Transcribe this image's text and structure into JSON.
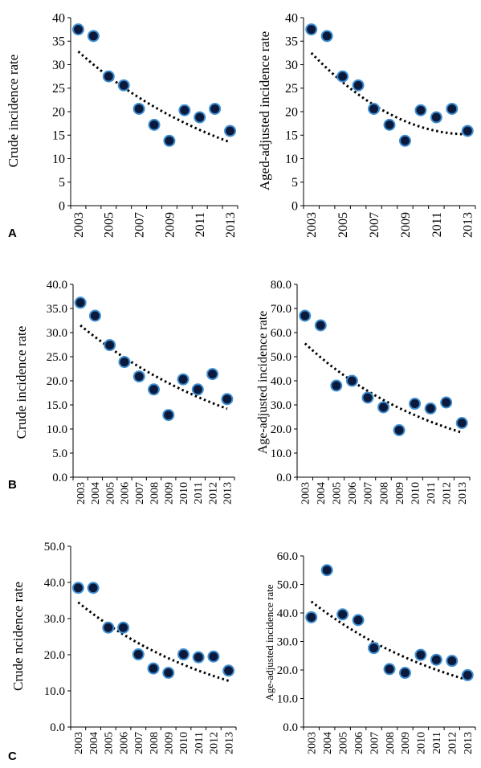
{
  "panel_letters": [
    "A",
    "B",
    "C"
  ],
  "colors": {
    "marker_fill": "#0b1a3c",
    "marker_stroke": "#3f8fd2",
    "trend": "#000000",
    "axis": "#000000"
  },
  "chart_data": [
    {
      "type": "scatter",
      "panel": "A",
      "ylabel": "Crude incidence rate",
      "xlabel": "",
      "x": [
        2003,
        2004,
        2005,
        2006,
        2007,
        2008,
        2009,
        2010,
        2011,
        2012,
        2013
      ],
      "y": [
        37.5,
        36.1,
        27.5,
        25.6,
        20.6,
        17.2,
        13.8,
        20.3,
        18.8,
        20.6,
        15.9
      ],
      "ylim": [
        0,
        40
      ],
      "yticks": [
        "0",
        "5",
        "10",
        "15",
        "20",
        "25",
        "30",
        "35",
        "40"
      ],
      "xticks": [
        "2003",
        "2005",
        "2007",
        "2009",
        "2011",
        "2013"
      ],
      "trend": "exponential",
      "trend_range": [
        32.8,
        13.5
      ]
    },
    {
      "type": "scatter",
      "panel": "A",
      "ylabel": "Aged-adjusted incidence rate",
      "xlabel": "",
      "x": [
        2003,
        2004,
        2005,
        2006,
        2007,
        2008,
        2009,
        2010,
        2011,
        2012,
        2013
      ],
      "y": [
        37.5,
        36.1,
        27.5,
        25.6,
        20.6,
        17.2,
        13.8,
        20.3,
        18.8,
        20.6,
        15.9
      ],
      "ylim": [
        0,
        40
      ],
      "yticks": [
        "0",
        "5",
        "10",
        "15",
        "20",
        "25",
        "30",
        "35",
        "40"
      ],
      "xticks": [
        "2003",
        "2005",
        "2007",
        "2009",
        "2011",
        "2013"
      ],
      "trend": "polynomial",
      "trend_range": [
        32.5,
        15.2
      ]
    },
    {
      "type": "scatter",
      "panel": "B",
      "ylabel": "Crude incidence rate",
      "xlabel": "",
      "x": [
        2003,
        2004,
        2005,
        2006,
        2007,
        2008,
        2009,
        2010,
        2011,
        2012,
        2013
      ],
      "y": [
        36.2,
        33.5,
        27.4,
        23.9,
        20.9,
        18.2,
        12.9,
        20.3,
        18.2,
        21.4,
        16.2
      ],
      "ylim": [
        0,
        40
      ],
      "yticks": [
        "0.0",
        "5.0",
        "10.0",
        "15.0",
        "20.0",
        "25.0",
        "30.0",
        "35.0",
        "40.0"
      ],
      "xticks": [
        "2003",
        "2004",
        "2005",
        "2006",
        "2007",
        "2008",
        "2009",
        "2010",
        "2011",
        "2012",
        "2013"
      ],
      "trend": "exponential",
      "trend_range": [
        31.5,
        14.2
      ]
    },
    {
      "type": "scatter",
      "panel": "B",
      "ylabel": "Age-adjusted incidence rate",
      "xlabel": "",
      "x": [
        2003,
        2004,
        2005,
        2006,
        2007,
        2008,
        2009,
        2010,
        2011,
        2012,
        2013
      ],
      "y": [
        67.0,
        63.0,
        38.0,
        40.0,
        33.0,
        29.0,
        19.5,
        30.5,
        28.5,
        31.0,
        22.5
      ],
      "ylim": [
        0,
        80
      ],
      "yticks": [
        "0.0",
        "10.0",
        "20.0",
        "30.0",
        "40.0",
        "50.0",
        "60.0",
        "70.0",
        "80.0"
      ],
      "xticks": [
        "2003",
        "2004",
        "2005",
        "2006",
        "2007",
        "2008",
        "2009",
        "2010",
        "2011",
        "2012",
        "2013"
      ],
      "trend": "exponential",
      "trend_range": [
        55.5,
        18.5
      ]
    },
    {
      "type": "scatter",
      "panel": "C",
      "ylabel": "Crude  ncidence rate",
      "xlabel": "",
      "x": [
        2003,
        2004,
        2005,
        2006,
        2007,
        2008,
        2009,
        2010,
        2011,
        2012,
        2013
      ],
      "y": [
        38.5,
        38.5,
        27.5,
        27.5,
        20.1,
        16.2,
        15.0,
        20.1,
        19.3,
        19.5,
        15.6
      ],
      "ylim": [
        0,
        50
      ],
      "yticks": [
        "0.0",
        "10.0",
        "20.0",
        "30.0",
        "40.0",
        "50.0"
      ],
      "xticks": [
        "2003",
        "2004",
        "2005",
        "2006",
        "2007",
        "2008",
        "2009",
        "2010",
        "2011",
        "2012",
        "2013"
      ],
      "trend": "exponential",
      "trend_range": [
        34.5,
        12.8
      ]
    },
    {
      "type": "scatter",
      "panel": "C",
      "ylabel": "Age-adjusted  incidence rate",
      "xlabel": "",
      "x": [
        2003,
        2004,
        2005,
        2006,
        2007,
        2008,
        2009,
        2010,
        2011,
        2012,
        2013
      ],
      "y": [
        38.5,
        55.0,
        39.5,
        37.5,
        27.7,
        20.3,
        19.0,
        25.3,
        23.6,
        23.2,
        18.2
      ],
      "ylim": [
        0,
        60
      ],
      "yticks": [
        "0.0",
        "10.0",
        "20.0",
        "30.0",
        "40.0",
        "50.0",
        "60.0"
      ],
      "xticks": [
        "2003",
        "2004",
        "2005",
        "2006",
        "2007",
        "2008",
        "2009",
        "2010",
        "2011",
        "2012",
        "2013"
      ],
      "trend": "exponential",
      "trend_range": [
        44.0,
        16.5
      ]
    }
  ]
}
